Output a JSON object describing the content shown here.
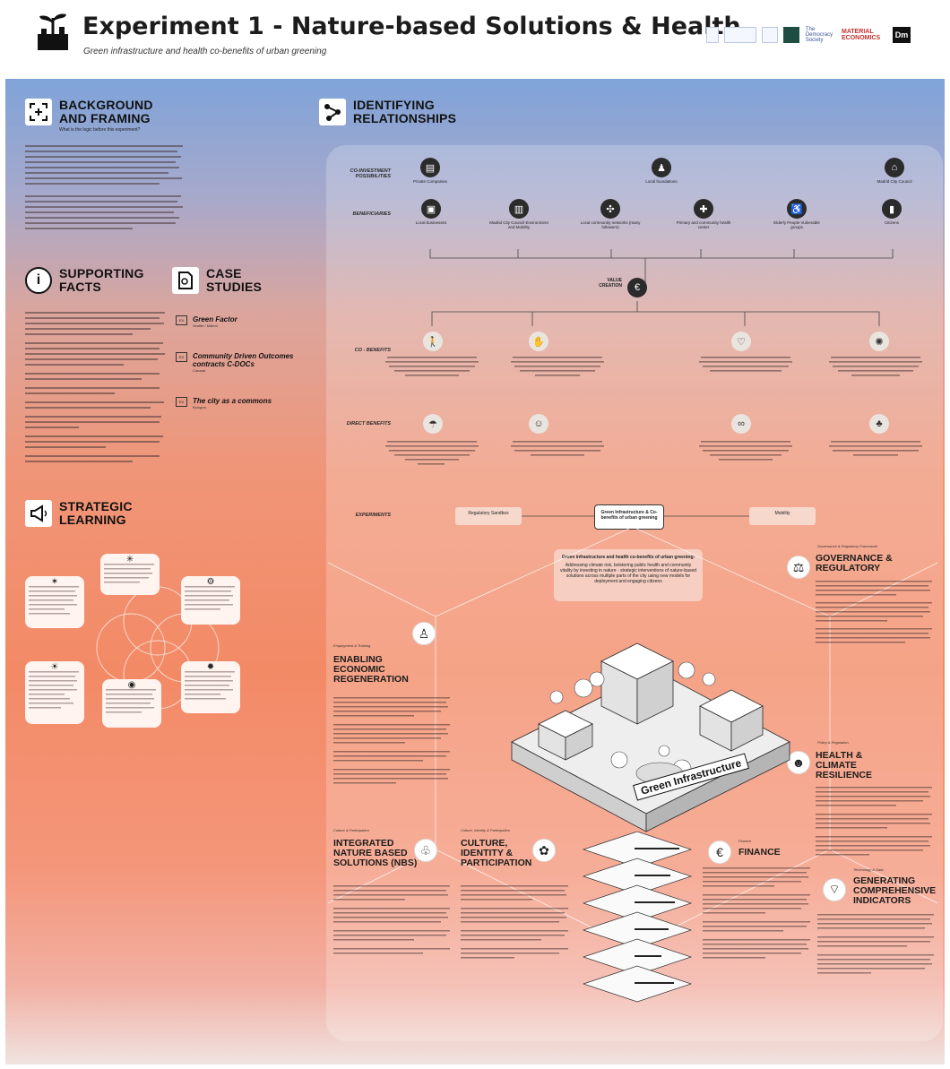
{
  "header": {
    "title": "Experiment 1 - Nature-based Solutions & Health",
    "subtitle": "Green infrastructure and health co-benefits of urban greening",
    "partners": [
      "",
      "",
      "",
      "",
      "The Democracy Society",
      "MATERIAL ECONOMICS",
      "Dm"
    ]
  },
  "background": {
    "title": "BACKGROUND AND FRAMING",
    "question": "What is the logic before this experiment?",
    "icon": "focus-plus-icon"
  },
  "identifying": {
    "title": "IDENTIFYING RELATIONSHIPS",
    "icon": "connections-icon"
  },
  "supporting": {
    "title": "SUPPORTING FACTS",
    "icon": "info-icon"
  },
  "case_studies": {
    "title": "CASE STUDIES",
    "icon": "document-icon",
    "items": [
      {
        "tag": "EX",
        "title": "Green Factor",
        "location": "Seattle / Malmö"
      },
      {
        "tag": "EX",
        "title": "Community Driven Outcomes contracts C-DOCs",
        "location": "Canada"
      },
      {
        "tag": "EX",
        "title": "The city as a commons",
        "location": "Bologna"
      }
    ]
  },
  "strategic": {
    "title": "STRATEGIC LEARNING",
    "icon": "megaphone-icon"
  },
  "rows": {
    "co_investment": "CO-INVESTMENT POSSIBILITIES",
    "beneficiaries": "BENEFICIARIES",
    "value_creation": "VALUE CREATION",
    "co_benefits": "CO - BENEFITS",
    "direct_benefits": "DIRECT BENEFITS",
    "experiments": "EXPERIMENTS"
  },
  "co_investors": [
    {
      "label": "Private Companies",
      "icon": "building-icon"
    },
    {
      "label": "Local foundations",
      "icon": "foundation-icon"
    },
    {
      "label": "Madrid City Council",
      "icon": "city-hall-icon"
    }
  ],
  "beneficiaries": [
    {
      "label": "Local businesses",
      "icon": "shop-icon"
    },
    {
      "label": "Madrid City Council Environment and Mobility",
      "icon": "tower-icon"
    },
    {
      "label": "Local community networks (many followers)",
      "icon": "network-icon"
    },
    {
      "label": "Primary and community health center",
      "icon": "health-icon"
    },
    {
      "label": "Elderly People Vulnerable groups",
      "icon": "elderly-icon"
    },
    {
      "label": "Citizens",
      "icon": "citizen-icon"
    }
  ],
  "co_benefit_icons": [
    "walking-icon",
    "hands-icon",
    "heart-icon",
    "sun-icon"
  ],
  "direct_benefit_icons": [
    "rain-icon",
    "leaf-face-icon",
    "infinity-icon",
    "tree-icon"
  ],
  "experiments": {
    "hub": "Green Infrastructure & Co-benefits of urban greening",
    "left": "Regulatory Sandbox",
    "right": "Mobility",
    "note_title": "Green infrastructure and health co-benefits of urban greening:",
    "note_body": "Addressing climate risk, bolstering public health and community vitality by investing in nature - strategic interventions of nature-based solutions across multiple parts of the city using new models for deployment and engaging citizens"
  },
  "topics": [
    {
      "small": "Governance & Regulatory Framework",
      "title": "GOVERNANCE & REGULATORY",
      "icon": "gavel-icon"
    },
    {
      "small": "Employment & Training",
      "title": "ENABLING ECONOMIC REGENERATION",
      "icon": "person-icon"
    },
    {
      "small": "Policy & Regulation",
      "title": "HEALTH & CLIMATE RESILIENCE",
      "icon": "people-icon"
    },
    {
      "small": "Culture & Participation",
      "title": "INTEGRATED NATURE BASED SOLUTIONS (NBS)",
      "icon": "nbs-icon"
    },
    {
      "small": "Culture, Identity & Participation",
      "title": "CULTURE, IDENTITY & PARTICIPATION",
      "icon": "culture-icon"
    },
    {
      "small": "Finance",
      "title": "FINANCE",
      "icon": "euro-icon"
    },
    {
      "small": "Technology & Data",
      "title": "GENERATING COMPREHENSIVE INDICATORS",
      "icon": "wifi-icon"
    }
  ],
  "green_infra_label": "Green Infrastructure"
}
